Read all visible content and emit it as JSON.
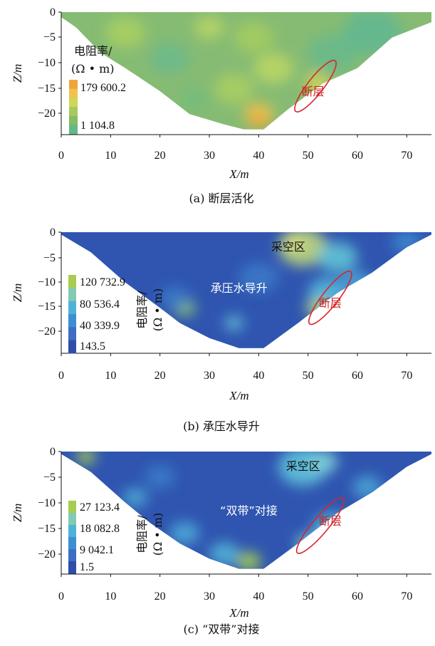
{
  "chart_data": [
    {
      "type": "heatmap",
      "caption": "(a) 断层活化",
      "xlabel": "X/m",
      "ylabel": "Z/m",
      "xlim": [
        0,
        75
      ],
      "ylim": [
        -24,
        0
      ],
      "xticks": [
        "0",
        "10",
        "20",
        "30",
        "40",
        "50",
        "60",
        "70"
      ],
      "yticks": [
        "0",
        "−5",
        "−10",
        "−15",
        "−20"
      ],
      "section_boundary": [
        [
          0,
          0
        ],
        [
          75,
          0
        ],
        [
          75,
          -2
        ],
        [
          67,
          -5
        ],
        [
          60,
          -11
        ],
        [
          53,
          -14
        ],
        [
          46,
          -19
        ],
        [
          41,
          -23
        ],
        [
          37,
          -23
        ],
        [
          33,
          -22
        ],
        [
          26,
          -20
        ],
        [
          20,
          -15.5
        ],
        [
          13,
          -11
        ],
        [
          8,
          -8
        ],
        [
          3,
          -3
        ],
        [
          0,
          -1
        ]
      ],
      "legend": {
        "title": [
          "电阻率/",
          "(Ω • m)"
        ],
        "title_orientation": "horizontal",
        "labels": [
          "179 600.2",
          "1 104.8"
        ],
        "colors": [
          "#f0a53a",
          "#efc34d",
          "#cfd65a",
          "#a8ca5c",
          "#86bc63",
          "#62b888"
        ]
      },
      "background_color": "#86bb73",
      "blobs": [
        {
          "x": 13,
          "y": -4,
          "r": 4,
          "color": "#a9cf62"
        },
        {
          "x": 22,
          "y": -9,
          "r": 4,
          "color": "#6db98c"
        },
        {
          "x": 30,
          "y": -3,
          "r": 3,
          "color": "#b6d467"
        },
        {
          "x": 39,
          "y": -5,
          "r": 4,
          "color": "#a4cc5f"
        },
        {
          "x": 43,
          "y": -11,
          "r": 4,
          "color": "#b9d565"
        },
        {
          "x": 55,
          "y": -8,
          "r": 5,
          "color": "#6ab98b"
        },
        {
          "x": 63,
          "y": -4,
          "r": 6,
          "color": "#62b890"
        },
        {
          "x": 35,
          "y": -15,
          "r": 4,
          "color": "#a8ce62"
        },
        {
          "x": 40,
          "y": -20,
          "r": 3,
          "color": "#efc04a"
        },
        {
          "x": 40,
          "y": -21.5,
          "r": 1.8,
          "color": "#f1a33a"
        },
        {
          "x": 52,
          "y": -14,
          "r": 2.5,
          "color": "#d9d55a"
        },
        {
          "x": 27,
          "y": -17,
          "r": 3,
          "color": "#73bd7c"
        }
      ],
      "annotations": [
        {
          "text": "断层",
          "x": 51,
          "y": -15.5,
          "color": "#cc2222"
        }
      ],
      "fault_ellipse": {
        "cx": 51.5,
        "cy": -14.5,
        "rx": 1.6,
        "ry": 6.3,
        "angle_deg": 38
      }
    },
    {
      "type": "heatmap",
      "caption": "(b) 承压水导升",
      "xlabel": "X/m",
      "ylabel": "Z/m",
      "xlim": [
        0,
        75
      ],
      "ylim": [
        -24,
        0
      ],
      "xticks": [
        "0",
        "10",
        "20",
        "30",
        "40",
        "50",
        "60",
        "70"
      ],
      "yticks": [
        "0",
        "−5",
        "−10",
        "−15",
        "−20"
      ],
      "section_boundary": [
        [
          0,
          0
        ],
        [
          75,
          0
        ],
        [
          75,
          -0.5
        ],
        [
          70,
          -3
        ],
        [
          63,
          -8
        ],
        [
          56,
          -12
        ],
        [
          48,
          -18
        ],
        [
          41,
          -23
        ],
        [
          36,
          -23
        ],
        [
          30,
          -21
        ],
        [
          24,
          -18
        ],
        [
          20,
          -15
        ],
        [
          13,
          -10
        ],
        [
          6,
          -4
        ],
        [
          0,
          -0.5
        ]
      ],
      "legend": {
        "title": [
          "电阻率/",
          "(Ω • m)"
        ],
        "title_orientation": "vertical",
        "labels": [
          "120 732.9",
          "80 536.4",
          "40 339.9",
          "143.5"
        ],
        "colors": [
          "#a6cd52",
          "#84c9b4",
          "#50b2d7",
          "#3d8fd2",
          "#3d6ec4",
          "#2f4ea8"
        ]
      },
      "background_color": "#2f55b0",
      "blobs": [
        {
          "x": 49,
          "y": -3,
          "r": 5,
          "color": "#bcd57a"
        },
        {
          "x": 47,
          "y": -2,
          "r": 2.5,
          "color": "#d3dc80"
        },
        {
          "x": 56,
          "y": -5,
          "r": 4,
          "color": "#5fc3d6"
        },
        {
          "x": 54,
          "y": -12,
          "r": 4,
          "color": "#54b8da"
        },
        {
          "x": 52,
          "y": -15,
          "r": 2.5,
          "color": "#b5d48a"
        },
        {
          "x": 60,
          "y": -10,
          "r": 3,
          "color": "#4aa5d6"
        },
        {
          "x": 25,
          "y": -15,
          "r": 2.2,
          "color": "#8ec66a"
        },
        {
          "x": 35,
          "y": -18,
          "r": 2,
          "color": "#63b9d7"
        },
        {
          "x": 40,
          "y": -9,
          "r": 4,
          "color": "#3a78c8"
        },
        {
          "x": 23,
          "y": -13,
          "r": 3,
          "color": "#3b7ac8"
        },
        {
          "x": 70,
          "y": -2,
          "r": 3,
          "color": "#3e86cd"
        }
      ],
      "annotations": [
        {
          "text": "采空区",
          "x": 46,
          "y": -2.8,
          "color": "#111111"
        },
        {
          "text": "承压水导升",
          "x": 36,
          "y": -11,
          "color": "#ffffff"
        },
        {
          "text": "断层",
          "x": 54.5,
          "y": -14,
          "color": "#cc2222"
        }
      ],
      "fault_ellipse": {
        "cx": 54.5,
        "cy": -13,
        "rx": 1.6,
        "ry": 6.6,
        "angle_deg": 38
      }
    },
    {
      "type": "heatmap",
      "caption": "(c) “双带”对接",
      "xlabel": "X/m",
      "ylabel": "Z/m",
      "xlim": [
        0,
        75
      ],
      "ylim": [
        -24,
        0
      ],
      "xticks": [
        "0",
        "10",
        "20",
        "30",
        "40",
        "50",
        "60",
        "70"
      ],
      "yticks": [
        "0",
        "−5",
        "−10",
        "−15",
        "−20"
      ],
      "section_boundary": [
        [
          0,
          0
        ],
        [
          75,
          0
        ],
        [
          75,
          -0.5
        ],
        [
          70,
          -3
        ],
        [
          63,
          -8
        ],
        [
          56,
          -12
        ],
        [
          48,
          -18
        ],
        [
          41,
          -23
        ],
        [
          36,
          -23
        ],
        [
          30,
          -21
        ],
        [
          24,
          -18
        ],
        [
          18,
          -14
        ],
        [
          13,
          -10
        ],
        [
          6,
          -4
        ],
        [
          0,
          -0.5
        ]
      ],
      "legend": {
        "title": [
          "电阻率/",
          "(Ω • m)"
        ],
        "title_orientation": "vertical",
        "labels": [
          "27 123.4",
          "18 082.8",
          "9 042.1",
          "1.5"
        ],
        "colors": [
          "#a6cd52",
          "#84c9b4",
          "#50b2d7",
          "#3d8fd2",
          "#3d6ec4",
          "#2f4ea8"
        ]
      },
      "background_color": "#2f55b0",
      "blobs": [
        {
          "x": 49,
          "y": -3,
          "r": 5,
          "color": "#5fc1da"
        },
        {
          "x": 53,
          "y": -2,
          "r": 3,
          "color": "#7ecfd6"
        },
        {
          "x": 55,
          "y": -15,
          "r": 4,
          "color": "#56bddb"
        },
        {
          "x": 50,
          "y": -18,
          "r": 2.5,
          "color": "#79cad2"
        },
        {
          "x": 38,
          "y": -21.5,
          "r": 2.5,
          "color": "#a6cd52"
        },
        {
          "x": 33,
          "y": -20,
          "r": 3,
          "color": "#52b5d8"
        },
        {
          "x": 25,
          "y": -16,
          "r": 3,
          "color": "#4da8d6"
        },
        {
          "x": 15,
          "y": -9,
          "r": 2.5,
          "color": "#4ea8d4"
        },
        {
          "x": 20,
          "y": -5,
          "r": 3,
          "color": "#3a7cc9"
        },
        {
          "x": 62,
          "y": -7,
          "r": 3,
          "color": "#4aa3d6"
        },
        {
          "x": 5,
          "y": -1,
          "r": 2,
          "color": "#a6cd52"
        }
      ],
      "annotations": [
        {
          "text": "采空区",
          "x": 49,
          "y": -2.8,
          "color": "#111111"
        },
        {
          "text": "“双带”对接",
          "x": 38,
          "y": -11.5,
          "color": "#ffffff"
        },
        {
          "text": "断层",
          "x": 54.5,
          "y": -13.5,
          "color": "#cc2222"
        }
      ],
      "fault_ellipse": {
        "cx": 52.5,
        "cy": -14.5,
        "rx": 1.6,
        "ry": 7,
        "angle_deg": 40
      }
    }
  ]
}
